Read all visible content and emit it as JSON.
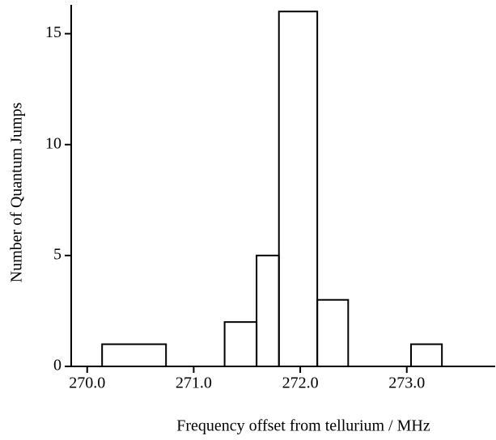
{
  "chart_data": {
    "type": "histogram",
    "xlabel": "Frequency offset from tellurium   / MHz",
    "ylabel": "Number of Quantum Jumps",
    "bins": [
      270.14,
      270.74,
      271.29,
      271.59,
      271.8,
      272.16,
      272.45,
      273.04,
      273.33
    ],
    "counts": [
      1,
      0,
      2,
      5,
      16,
      3,
      0,
      1
    ],
    "color": "#000000",
    "xlim": [
      269.85,
      273.83
    ],
    "xticks": [
      {
        "value": 270,
        "label": "270.0"
      },
      {
        "value": 271,
        "label": "271.0"
      },
      {
        "value": 272,
        "label": "272.0"
      },
      {
        "value": 273,
        "label": "273.0"
      }
    ],
    "ylim": [
      0,
      16.3
    ],
    "yticks": [
      0,
      5,
      10,
      15
    ]
  }
}
